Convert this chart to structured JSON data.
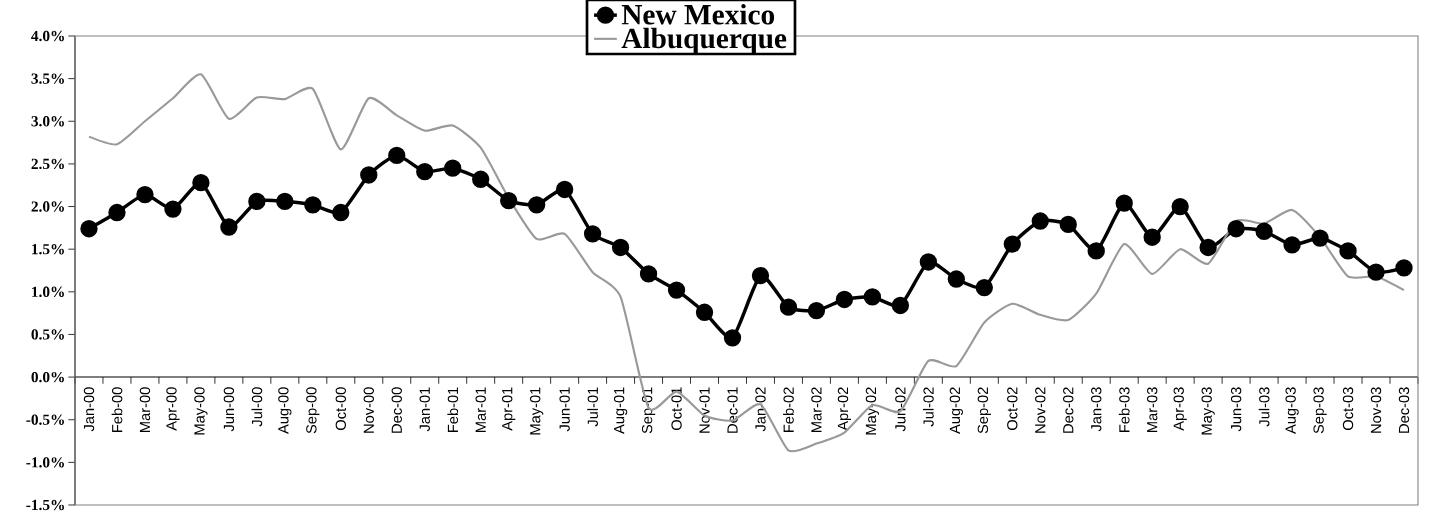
{
  "chart_data": {
    "type": "line",
    "categories": [
      "Jan-00",
      "Feb-00",
      "Mar-00",
      "Apr-00",
      "May-00",
      "Jun-00",
      "Jul-00",
      "Aug-00",
      "Sep-00",
      "Oct-00",
      "Nov-00",
      "Dec-00",
      "Jan-01",
      "Feb-01",
      "Mar-01",
      "Apr-01",
      "May-01",
      "Jun-01",
      "Jul-01",
      "Aug-01",
      "Sep-01",
      "Oct-01",
      "Nov-01",
      "Dec-01",
      "Jan-02",
      "Feb-02",
      "Mar-02",
      "Apr-02",
      "May-02",
      "Jun-02",
      "Jul-02",
      "Aug-02",
      "Sep-02",
      "Oct-02",
      "Nov-02",
      "Dec-02",
      "Jan-03",
      "Feb-03",
      "Mar-03",
      "Apr-03",
      "May-03",
      "Jun-03",
      "Jul-03",
      "Aug-03",
      "Sep-03",
      "Oct-03",
      "Nov-03",
      "Dec-03"
    ],
    "series": [
      {
        "name": "New Mexico",
        "color": "#000000",
        "marker": "circle",
        "values": [
          1.74,
          1.93,
          2.14,
          1.97,
          2.28,
          1.76,
          2.06,
          2.06,
          2.02,
          1.93,
          2.37,
          2.6,
          2.41,
          2.45,
          2.32,
          2.07,
          2.02,
          2.2,
          1.68,
          1.52,
          1.21,
          1.02,
          0.76,
          0.46,
          1.19,
          0.82,
          0.78,
          0.91,
          0.94,
          0.84,
          1.35,
          1.15,
          1.05,
          1.56,
          1.83,
          1.79,
          1.48,
          2.04,
          1.64,
          2.0,
          1.52,
          1.74,
          1.71,
          1.55,
          1.63,
          1.48,
          1.23,
          1.28
        ]
      },
      {
        "name": "Albuquerque",
        "color": "#999999",
        "marker": "none",
        "values": [
          2.82,
          2.73,
          3.0,
          3.27,
          3.55,
          3.03,
          3.28,
          3.26,
          3.38,
          2.67,
          3.27,
          3.07,
          2.89,
          2.95,
          2.69,
          2.1,
          1.62,
          1.68,
          1.23,
          0.94,
          -0.36,
          -0.17,
          -0.45,
          -0.51,
          -0.32,
          -0.86,
          -0.78,
          -0.65,
          -0.33,
          -0.4,
          0.19,
          0.13,
          0.64,
          0.86,
          0.73,
          0.67,
          0.98,
          1.56,
          1.21,
          1.5,
          1.33,
          1.83,
          1.8,
          1.96,
          1.64,
          1.18,
          1.18,
          1.02
        ]
      }
    ],
    "ylim": [
      -1.5,
      4.0
    ],
    "yticks": [
      {
        "value": -1.5,
        "label": "-1.5%"
      },
      {
        "value": -1.0,
        "label": "-1.0%"
      },
      {
        "value": -0.5,
        "label": "-0.5%"
      },
      {
        "value": 0.0,
        "label": "0.0%"
      },
      {
        "value": 0.5,
        "label": "0.5%"
      },
      {
        "value": 1.0,
        "label": "1.0%"
      },
      {
        "value": 1.5,
        "label": "1.5%"
      },
      {
        "value": 2.0,
        "label": "2.0%"
      },
      {
        "value": 2.5,
        "label": "2.5%"
      },
      {
        "value": 3.0,
        "label": "3.0%"
      },
      {
        "value": 3.5,
        "label": "3.5%"
      },
      {
        "value": 4.0,
        "label": "4.0%"
      }
    ],
    "legend": "top"
  }
}
